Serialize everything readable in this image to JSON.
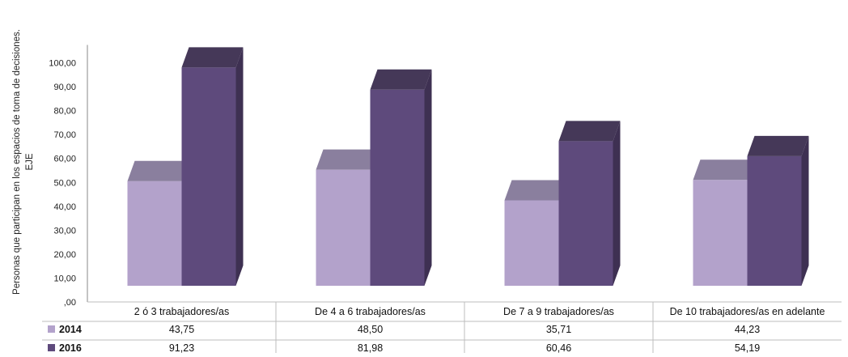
{
  "chart_data": {
    "type": "bar",
    "ylabel_line1": "Personas que participan en los espacios de toma de decisiones.",
    "ylabel_line2": "EJE",
    "ylim": [
      0,
      100
    ],
    "ytick_step": 10,
    "ytick_labels": [
      ",00",
      "10,00",
      "20,00",
      "30,00",
      "40,00",
      "50,00",
      "60,00",
      "70,00",
      "80,00",
      "90,00",
      "100,00"
    ],
    "categories": [
      "2 ó 3 trabajadores/as",
      "De 4 a 6 trabajadores/as",
      "De 7 a 9 trabajadores/as",
      "De 10 trabajadores/as en adelante"
    ],
    "series": [
      {
        "name": "2014",
        "values": [
          43.75,
          48.5,
          35.71,
          44.23
        ],
        "value_labels": [
          "43,75",
          "48,50",
          "35,71",
          "44,23"
        ],
        "color": "#b3a2cb",
        "top_color": "#8a7f9e",
        "side_color": "#8f80a6"
      },
      {
        "name": "2016",
        "values": [
          91.23,
          81.98,
          60.46,
          54.19
        ],
        "value_labels": [
          "91,23",
          "81,98",
          "60,46",
          "54,19"
        ],
        "color": "#5e4a7c",
        "top_color": "#453858",
        "side_color": "#3e3052"
      }
    ],
    "legend_position": "bottom-table",
    "grid": false
  }
}
